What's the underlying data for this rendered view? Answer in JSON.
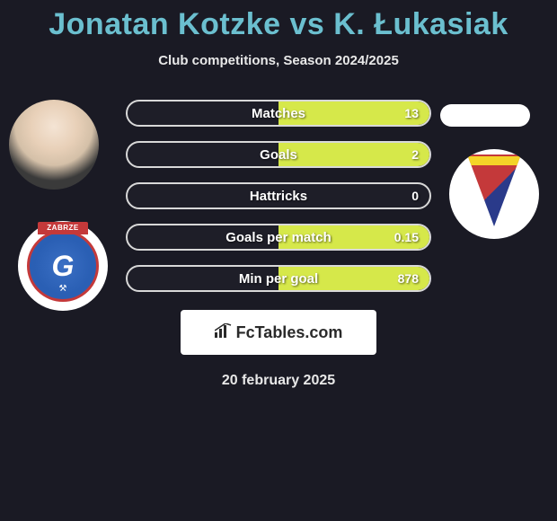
{
  "title": {
    "player1": "Jonatan Kotzke",
    "vs": "vs",
    "player2": "K. Łukasiak",
    "color": "#6bbfcf"
  },
  "subtitle": "Club competitions, Season 2024/2025",
  "stats": [
    {
      "label": "Matches",
      "left_val": "",
      "right_val": "13",
      "left_pct": 0,
      "right_pct": 100,
      "left_color": "#4fb3c7",
      "right_color": "#d6e84a"
    },
    {
      "label": "Goals",
      "left_val": "",
      "right_val": "2",
      "left_pct": 0,
      "right_pct": 100,
      "left_color": "#4fb3c7",
      "right_color": "#d6e84a"
    },
    {
      "label": "Hattricks",
      "left_val": "",
      "right_val": "0",
      "left_pct": 0,
      "right_pct": 0,
      "left_color": "#4fb3c7",
      "right_color": "#d6e84a"
    },
    {
      "label": "Goals per match",
      "left_val": "",
      "right_val": "0.15",
      "left_pct": 0,
      "right_pct": 100,
      "left_color": "#4fb3c7",
      "right_color": "#d6e84a"
    },
    {
      "label": "Min per goal",
      "left_val": "",
      "right_val": "878",
      "left_pct": 0,
      "right_pct": 100,
      "left_color": "#4fb3c7",
      "right_color": "#d6e84a"
    }
  ],
  "footer": {
    "logo_text": "FcTables.com",
    "date": "20 february 2025"
  },
  "colors": {
    "background": "#1a1a24",
    "pill_border": "#d8d8d8",
    "text": "#e8e8e8"
  },
  "player_left": {
    "club_top_text": "ZABRZE",
    "club_letter": "G"
  }
}
